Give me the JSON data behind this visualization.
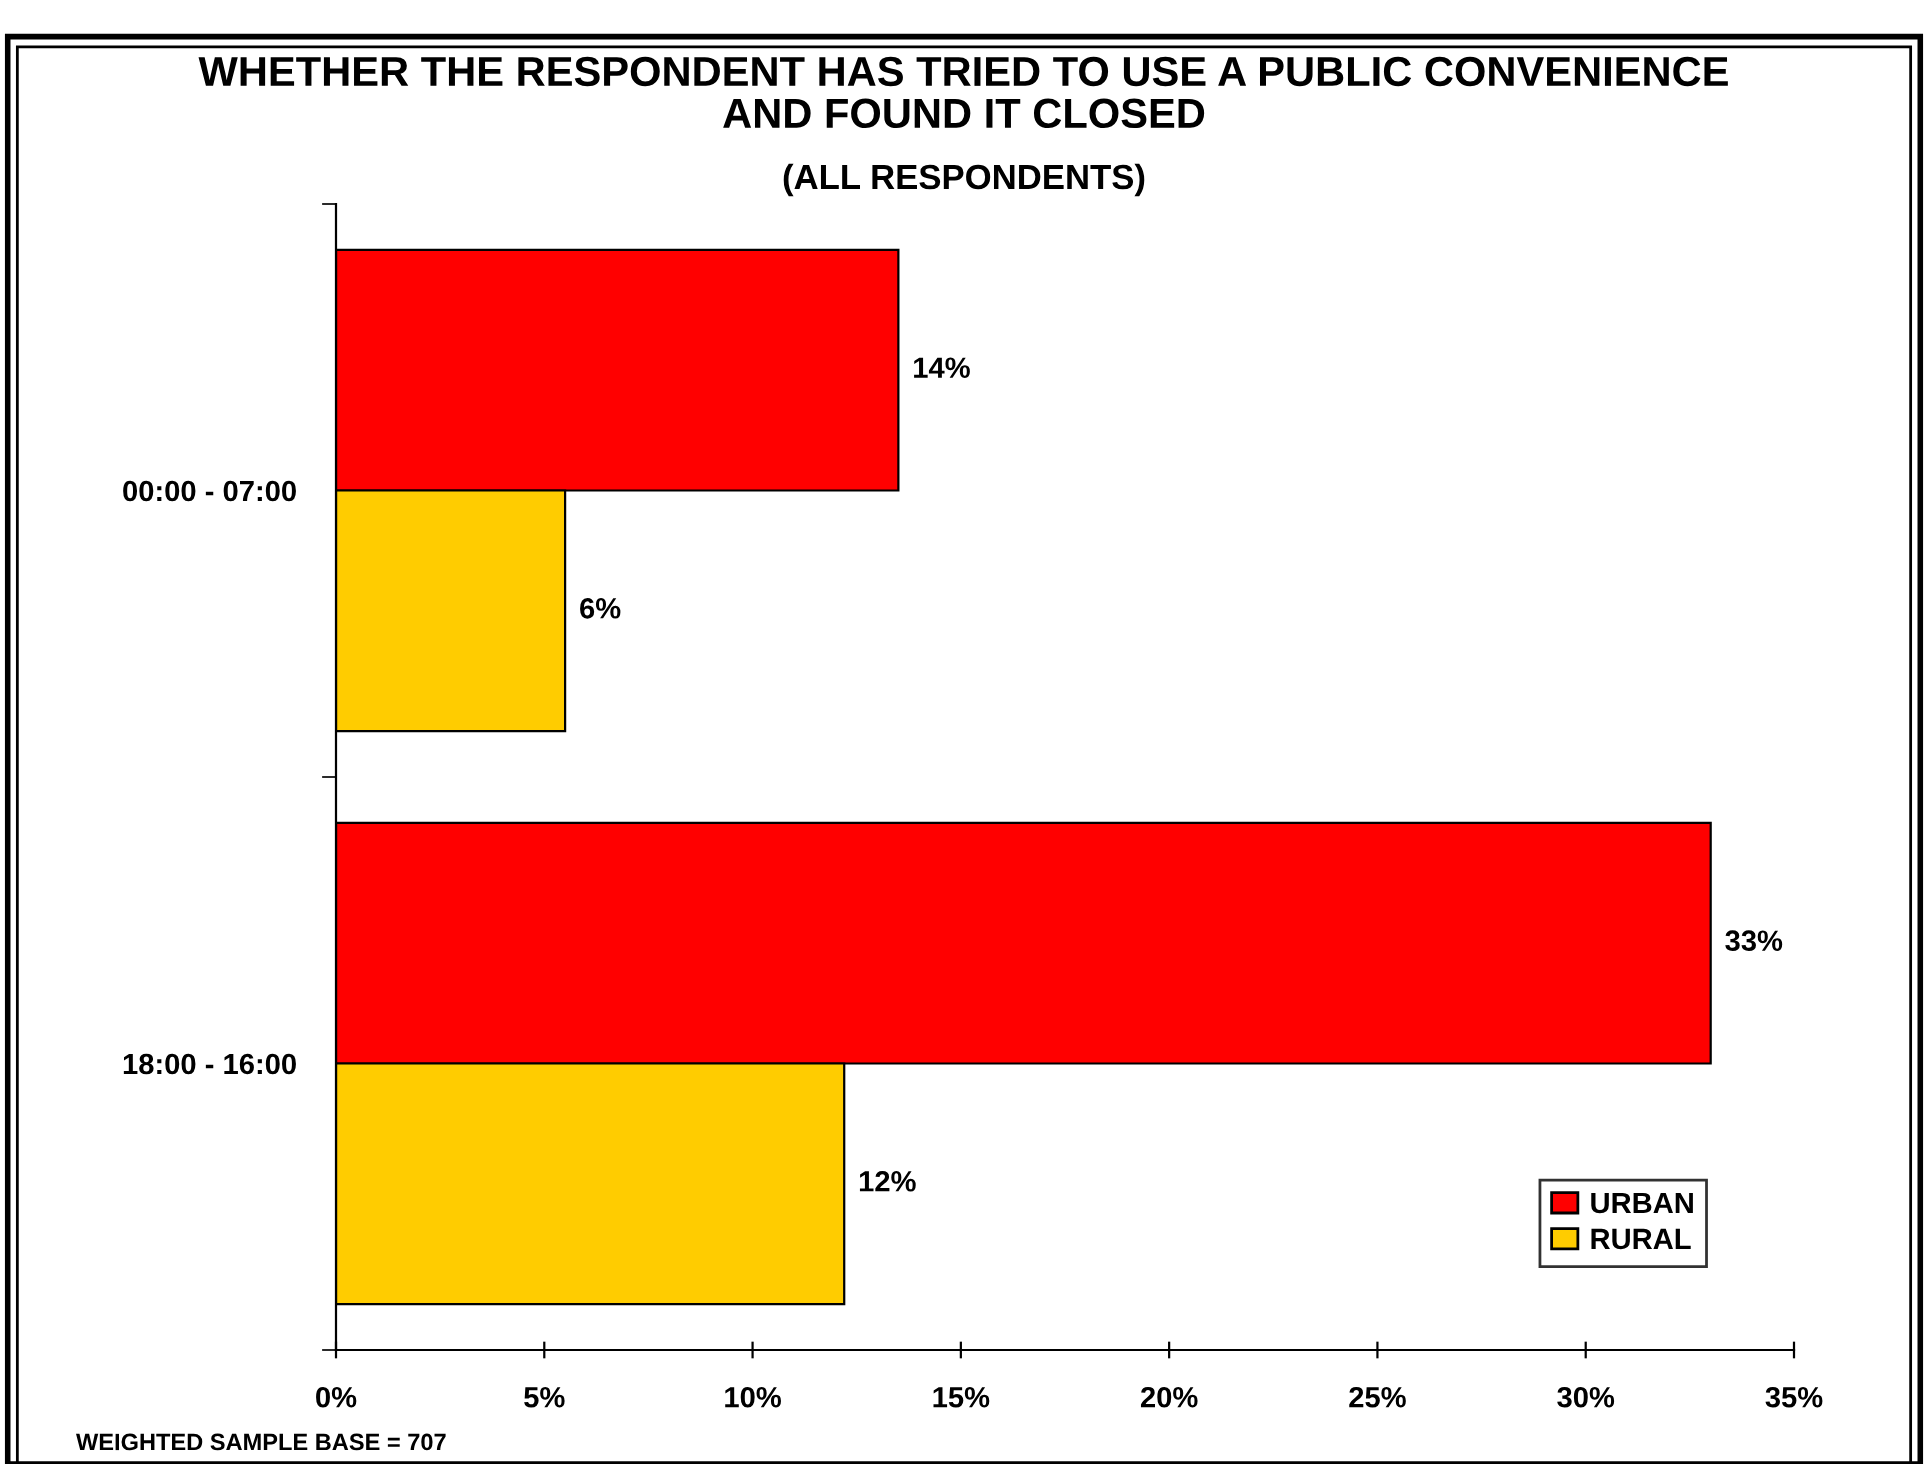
{
  "chart_data": {
    "type": "bar",
    "orientation": "horizontal",
    "title": "WHETHER THE RESPONDENT HAS TRIED TO USE A PUBLIC CONVENIENCE\nAND FOUND IT CLOSED",
    "subtitle": "(ALL RESPONDENTS)",
    "categories": [
      "00:00 - 07:00",
      "18:00 - 16:00"
    ],
    "series": [
      {
        "name": "URBAN",
        "color": "#ff0000",
        "values": [
          13.5,
          33.0
        ],
        "value_labels": [
          "14%",
          "33%"
        ]
      },
      {
        "name": "RURAL",
        "color": "#ffcc00",
        "values": [
          5.5,
          12.2
        ],
        "value_labels": [
          "6%",
          "12%"
        ]
      }
    ],
    "xlim": [
      0,
      35
    ],
    "xticks": [
      {
        "value": 0,
        "label": "0%"
      },
      {
        "value": 5,
        "label": "5%"
      },
      {
        "value": 10,
        "label": "10%"
      },
      {
        "value": 15,
        "label": "15%"
      },
      {
        "value": 20,
        "label": "20%"
      },
      {
        "value": 25,
        "label": "25%"
      },
      {
        "value": 30,
        "label": "30%"
      },
      {
        "value": 35,
        "label": "35%"
      }
    ],
    "grid": false,
    "legend": "bottom right",
    "annotations": [
      "WEIGHTED SAMPLE BASE = 707"
    ]
  }
}
